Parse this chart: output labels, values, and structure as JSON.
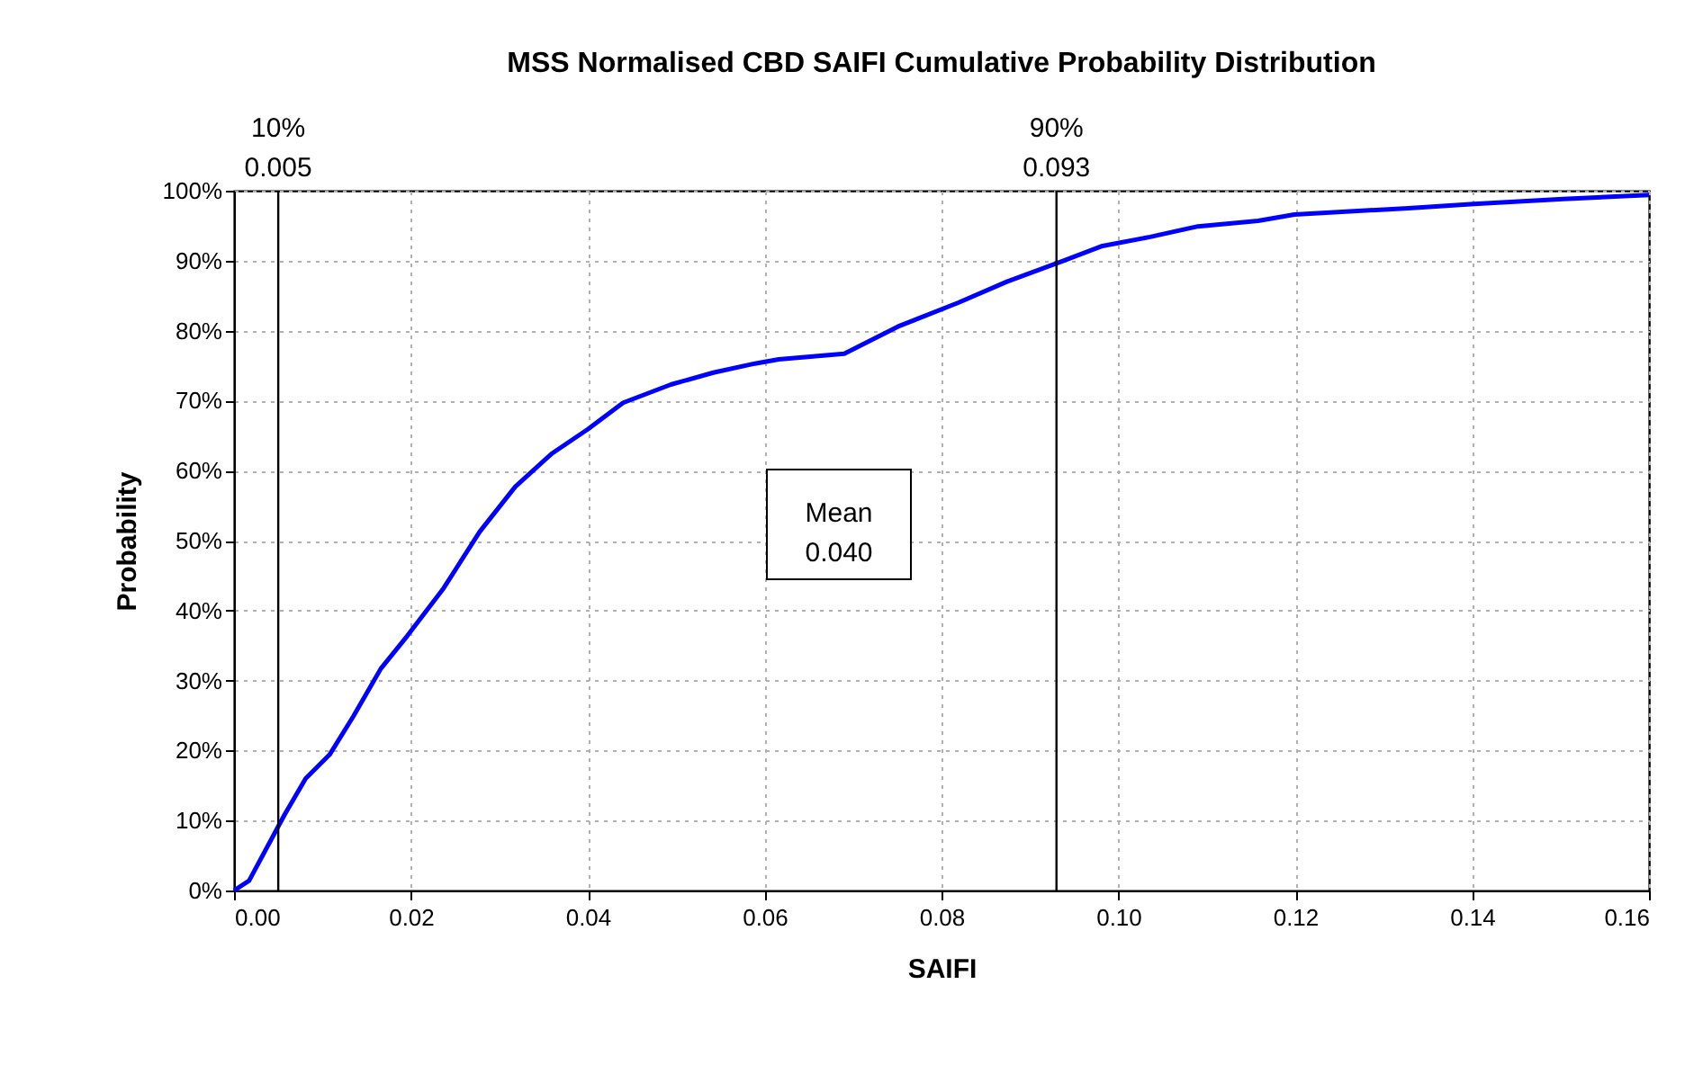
{
  "chart_data": {
    "type": "line",
    "title": "MSS Normalised CBD SAIFI Cumulative Probability Distribution",
    "xlabel": "SAIFI",
    "ylabel": "Probability",
    "x": [
      0,
      0.0017,
      0.0057,
      0.0081,
      0.0108,
      0.0135,
      0.0166,
      0.0196,
      0.0237,
      0.0278,
      0.0318,
      0.0359,
      0.04,
      0.044,
      0.0494,
      0.0542,
      0.0589,
      0.0616,
      0.069,
      0.0751,
      0.0819,
      0.0874,
      0.0938,
      0.0982,
      0.1036,
      0.109,
      0.1158,
      0.1199,
      0.1328,
      0.1402,
      0.1503,
      0.16
    ],
    "series": [
      {
        "color": "#0000ff",
        "values": [
          0,
          1.4,
          10.8,
          16,
          19.4,
          24.9,
          31.7,
          36.4,
          43.2,
          51.3,
          57.7,
          62.4,
          65.9,
          69.7,
          72.3,
          74,
          75.3,
          75.9,
          76.7,
          80.6,
          84,
          87,
          90,
          92.1,
          93.4,
          94.9,
          95.7,
          96.6,
          97.5,
          98.1,
          98.8,
          99.4
        ]
      }
    ],
    "xlim": [
      0,
      0.16
    ],
    "xticks": [
      {
        "value": 0,
        "label": "0.00"
      },
      0.02,
      0.04,
      0.06,
      0.08,
      {
        "value": 0.1,
        "label": "0.10"
      },
      0.12,
      0.14,
      0.16
    ],
    "ylim": [
      0,
      100
    ],
    "yticks": [
      {
        "value": 0,
        "label": "0%"
      },
      {
        "value": 10,
        "label": "10%"
      },
      {
        "value": 20,
        "label": "20%"
      },
      {
        "value": 30,
        "label": "30%"
      },
      {
        "value": 40,
        "label": "40%"
      },
      {
        "value": 50,
        "label": "50%"
      },
      {
        "value": 60,
        "label": "60%"
      },
      {
        "value": 70,
        "label": "70%"
      },
      {
        "value": 80,
        "label": "80%"
      },
      {
        "value": 90,
        "label": "90%"
      },
      {
        "value": 100,
        "label": "100%"
      }
    ],
    "ref_lines": [
      {
        "axis": "x",
        "value": 0.005,
        "label": "10%\n0.005",
        "color": "#000000"
      },
      {
        "axis": "x",
        "value": 0.093,
        "label": "90%\n0.093",
        "color": "#000000"
      }
    ],
    "annotations": [
      "Mean\n0.040"
    ],
    "grid": true,
    "marker": "none",
    "line_style": "solid"
  }
}
